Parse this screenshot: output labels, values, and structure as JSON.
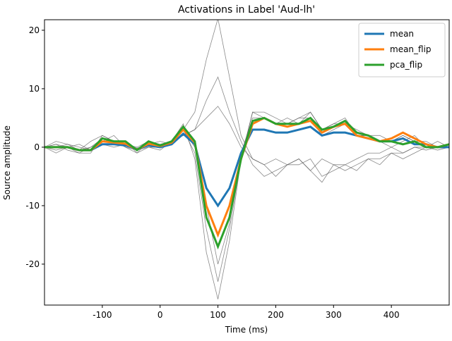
{
  "chart_data": {
    "type": "line",
    "title": "Activations in Label 'Aud-lh'",
    "x_label": "Time (ms)",
    "y_label": "Source amplitude",
    "x": [
      -200,
      -180,
      -160,
      -140,
      -120,
      -100,
      -80,
      -60,
      -40,
      -20,
      0,
      20,
      40,
      60,
      80,
      100,
      120,
      140,
      160,
      180,
      200,
      220,
      240,
      260,
      280,
      300,
      320,
      340,
      360,
      380,
      400,
      420,
      440,
      460,
      480,
      500
    ],
    "xlim": [
      -200,
      500
    ],
    "ylim": [
      -27,
      21.8
    ],
    "xticks": [
      -100,
      0,
      100,
      200,
      300,
      400
    ],
    "yticks": [
      -20,
      -10,
      0,
      10,
      20
    ],
    "legend": "upper right",
    "series": [
      {
        "color": "#555555",
        "values": [
          0,
          0.5,
          0,
          -0.5,
          0,
          1,
          1,
          0,
          -0.5,
          0.5,
          0,
          1,
          3,
          6,
          15,
          22,
          12,
          2,
          -2,
          -3,
          -2,
          -3,
          -2,
          -4,
          -2,
          -3,
          -3,
          -2,
          -1,
          -1,
          0,
          -1,
          0,
          0,
          0,
          0
        ]
      },
      {
        "color": "#555555",
        "values": [
          0,
          -0.5,
          0,
          -1,
          -1,
          2,
          1,
          1,
          -1,
          1,
          0,
          1,
          4,
          -2,
          -18,
          -26,
          -16,
          -2,
          6,
          5,
          4,
          5,
          4,
          6,
          3,
          4,
          5,
          2,
          2,
          1,
          1,
          2,
          1,
          0,
          0,
          0
        ]
      },
      {
        "color": "#555555",
        "values": [
          0,
          1,
          0.5,
          -0.5,
          1,
          2,
          1,
          0.5,
          0,
          1,
          0.5,
          1,
          3,
          0,
          -10,
          -20,
          -13,
          -1,
          5,
          5,
          4,
          4,
          5,
          5,
          2,
          3,
          4,
          2,
          2,
          1,
          0,
          1,
          2,
          0,
          1,
          0
        ]
      },
      {
        "color": "#555555",
        "values": [
          0,
          -1,
          0,
          0.5,
          -0.5,
          1,
          2,
          0,
          -1,
          0,
          -0.5,
          1,
          2,
          3,
          8,
          12,
          6,
          1,
          -3,
          -5,
          -4,
          -3,
          -2,
          -4,
          -6,
          -3,
          -4,
          -3,
          -2,
          -2,
          -1,
          -1,
          0,
          -0.5,
          0,
          0
        ]
      },
      {
        "color": "#555555",
        "values": [
          0,
          0.5,
          -0.5,
          -1,
          0,
          1.5,
          0.5,
          1,
          -0.5,
          0.5,
          1,
          0.5,
          3,
          -1,
          -14,
          -23,
          -14,
          -2,
          6,
          6,
          5,
          4,
          5,
          6,
          3,
          4,
          4,
          3,
          2,
          2,
          1,
          2,
          1,
          1,
          0,
          0.5
        ]
      },
      {
        "color": "#555555",
        "values": [
          0,
          0,
          0.5,
          0,
          -0.5,
          0.5,
          0,
          0.5,
          -0.5,
          0,
          0,
          1,
          2,
          3,
          5,
          7,
          4,
          0,
          -2,
          -3,
          -5,
          -3,
          -3,
          -2,
          -5,
          -4,
          -3,
          -4,
          -2,
          -3,
          -1,
          -2,
          -1,
          0,
          -0.5,
          0
        ]
      },
      {
        "name": "mean",
        "color": "#1f77b4",
        "values": [
          0,
          0,
          0,
          -0.5,
          -0.5,
          0.5,
          0.5,
          0.3,
          -0.3,
          0.3,
          0,
          0.5,
          2.3,
          0.5,
          -7,
          -10,
          -7,
          -1,
          3,
          3,
          2.5,
          2.5,
          3,
          3.5,
          2,
          2.5,
          2.5,
          2,
          1.5,
          1,
          1,
          1.5,
          0.5,
          0.5,
          0,
          0
        ]
      },
      {
        "name": "mean_flip",
        "color": "#ff7f0e",
        "values": [
          0,
          0,
          0,
          -0.5,
          -0.5,
          1,
          0.8,
          0.6,
          -0.4,
          0.6,
          0.2,
          0.8,
          3,
          0.8,
          -10,
          -15,
          -10,
          -2,
          4,
          5,
          4,
          3.5,
          4,
          4.5,
          2.5,
          3.5,
          4,
          2,
          1.5,
          1,
          1.5,
          2.5,
          1.5,
          0.5,
          0,
          0.5
        ]
      },
      {
        "name": "pca_flip",
        "color": "#2ca02c",
        "values": [
          0,
          0,
          0,
          -0.5,
          -0.5,
          1.5,
          1,
          1,
          -0.5,
          1,
          0.3,
          1,
          3.5,
          1,
          -12,
          -17,
          -12,
          -2,
          4.5,
          5,
          4,
          4,
          4,
          5,
          3,
          3.5,
          4.5,
          2.5,
          2,
          1,
          1,
          0.5,
          1,
          0,
          0,
          0.5
        ]
      }
    ]
  }
}
